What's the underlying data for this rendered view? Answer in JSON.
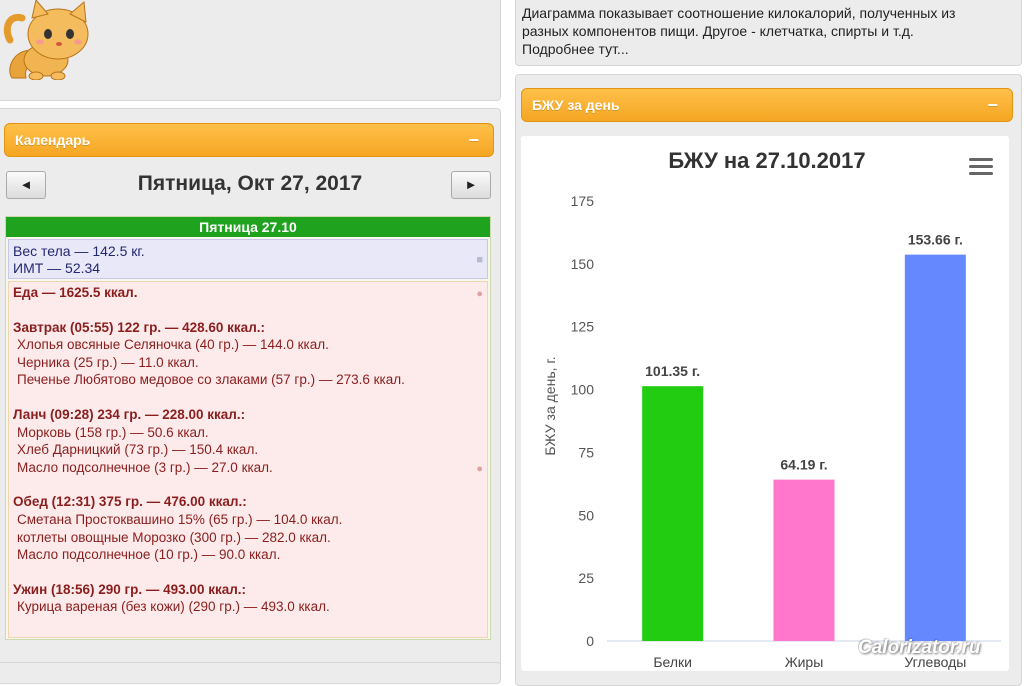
{
  "calendar": {
    "header": "Календарь",
    "collapse": "−",
    "prev": "◄",
    "next": "►",
    "title": "Пятница, Окт 27, 2017",
    "day_label": "Пятница 27.10"
  },
  "body": {
    "weight": "Вес тела — 142.5 кг.",
    "bmi": "ИМТ — 52.34"
  },
  "food": {
    "total": "Еда — 1625.5 ккал.",
    "meals": [
      {
        "title": "Завтрак (05:55) 122 гр. — 428.60 ккал.:",
        "items": [
          "Хлопья овсяные Селяночка (40 гр.) — 144.0 ккал.",
          "Черника (25 гр.) — 11.0 ккал.",
          "Печенье Любятово медовое со злаками (57 гр.) — 273.6 ккал."
        ]
      },
      {
        "title": "Ланч (09:28) 234 гр. — 228.00 ккал.:",
        "items": [
          "Морковь (158 гр.) — 50.6 ккал.",
          "Хлеб Дарницкий (73 гр.) — 150.4 ккал.",
          "Масло подсолнечное (3 гр.) — 27.0 ккал."
        ]
      },
      {
        "title": "Обед (12:31) 375 гр. — 476.00 ккал.:",
        "items": [
          "Сметана Простоквашино 15% (65 гр.) — 104.0 ккал.",
          "котлеты овощные Морозко (300 гр.) — 282.0 ккал.",
          "Масло подсолнечное (10 гр.) — 90.0 ккал."
        ]
      },
      {
        "title": "Ужин (18:56) 290 гр. — 493.00 ккал.:",
        "items": [
          "Курица вареная (без кожи) (290 гр.) — 493.0 ккал."
        ]
      }
    ]
  },
  "info": {
    "text": "Диаграмма показывает соотношение килокалорий, полученных из разных компонентов пищи. Другое - клетчатка, спирты и т.д.",
    "more": "Подробнее тут..."
  },
  "bju_panel": {
    "header": "БЖУ за день",
    "collapse": "−"
  },
  "watermark": "Calorizator.ru",
  "chart_data": {
    "type": "bar",
    "title": "БЖУ на 27.10.2017",
    "ylabel": "БЖУ за день, г.",
    "xlabel": "",
    "categories": [
      "Белки",
      "Жиры",
      "Углеводы"
    ],
    "values": [
      101.35,
      64.19,
      153.66
    ],
    "data_labels": [
      "101.35 г.",
      "64.19 г.",
      "153.66 г."
    ],
    "colors": [
      "#22cc11",
      "#ff77cc",
      "#6688ff"
    ],
    "ylim": [
      0,
      175
    ],
    "yticks": [
      0,
      25,
      50,
      75,
      100,
      125,
      150,
      175
    ],
    "grid": false,
    "legend": "none"
  }
}
